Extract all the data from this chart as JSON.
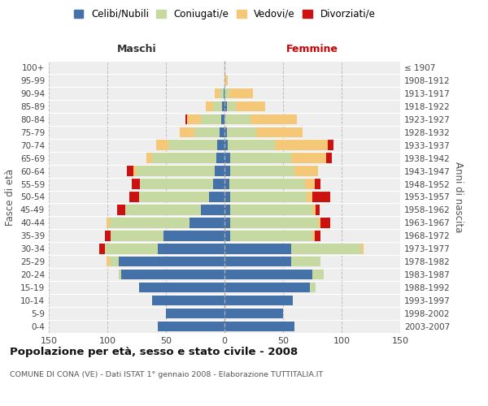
{
  "age_groups": [
    "0-4",
    "5-9",
    "10-14",
    "15-19",
    "20-24",
    "25-29",
    "30-34",
    "35-39",
    "40-44",
    "45-49",
    "50-54",
    "55-59",
    "60-64",
    "65-69",
    "70-74",
    "75-79",
    "80-84",
    "85-89",
    "90-94",
    "95-99",
    "100+"
  ],
  "birth_years": [
    "2003-2007",
    "1998-2002",
    "1993-1997",
    "1988-1992",
    "1983-1987",
    "1978-1982",
    "1973-1977",
    "1968-1972",
    "1963-1967",
    "1958-1962",
    "1953-1957",
    "1948-1952",
    "1943-1947",
    "1938-1942",
    "1933-1937",
    "1928-1932",
    "1923-1927",
    "1918-1922",
    "1913-1917",
    "1908-1912",
    "≤ 1907"
  ],
  "maschi": {
    "celibi": [
      57,
      50,
      62,
      73,
      88,
      90,
      57,
      52,
      30,
      20,
      13,
      10,
      8,
      7,
      6,
      4,
      3,
      2,
      1,
      0,
      0
    ],
    "coniugati": [
      0,
      0,
      0,
      0,
      2,
      8,
      45,
      45,
      68,
      65,
      60,
      62,
      67,
      55,
      42,
      22,
      17,
      8,
      3,
      0,
      0
    ],
    "vedovi": [
      0,
      0,
      0,
      0,
      0,
      3,
      0,
      0,
      3,
      0,
      0,
      0,
      3,
      5,
      10,
      12,
      12,
      6,
      4,
      0,
      0
    ],
    "divorziati": [
      0,
      0,
      0,
      0,
      0,
      0,
      5,
      5,
      0,
      7,
      8,
      7,
      5,
      0,
      0,
      0,
      1,
      0,
      0,
      0,
      0
    ]
  },
  "femmine": {
    "nubili": [
      60,
      50,
      58,
      73,
      75,
      57,
      57,
      5,
      5,
      5,
      5,
      4,
      5,
      5,
      3,
      2,
      0,
      2,
      0,
      0,
      0
    ],
    "coniugate": [
      0,
      0,
      0,
      5,
      10,
      25,
      60,
      70,
      75,
      70,
      65,
      65,
      55,
      52,
      40,
      25,
      22,
      8,
      4,
      0,
      0
    ],
    "vedove": [
      0,
      0,
      0,
      0,
      0,
      0,
      2,
      2,
      2,
      3,
      5,
      8,
      20,
      30,
      45,
      40,
      40,
      25,
      20,
      3,
      0
    ],
    "divorziate": [
      0,
      0,
      0,
      0,
      0,
      0,
      0,
      5,
      8,
      3,
      15,
      5,
      0,
      5,
      5,
      0,
      0,
      0,
      0,
      0,
      0
    ]
  },
  "colors": {
    "celibi": "#4472a8",
    "coniugati": "#c5d9a0",
    "vedovi": "#f5c878",
    "divorziati": "#cc1111"
  },
  "title": "Popolazione per età, sesso e stato civile - 2008",
  "subtitle": "COMUNE DI CONA (VE) - Dati ISTAT 1° gennaio 2008 - Elaborazione TUTTITALIA.IT",
  "xlabel_left": "Maschi",
  "xlabel_right": "Femmine",
  "ylabel": "Fasce di età",
  "ylabel_right": "Anni di nascita",
  "background_color": "#eeeeee",
  "legend_labels": [
    "Celibi/Nubili",
    "Coniugati/e",
    "Vedovi/e",
    "Divorziati/e"
  ]
}
